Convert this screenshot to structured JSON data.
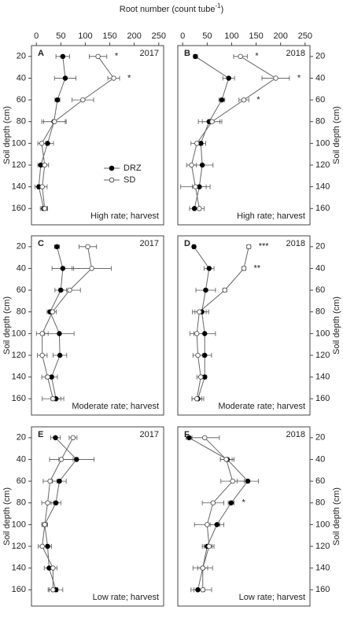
{
  "chart_data": [
    {
      "type": "line",
      "panel": "A",
      "year": "2017",
      "annotation": "High rate; harvest",
      "xlabel": "Root number (count tube",
      "xlabel_sup": "-1",
      "xlabel_end": ")",
      "ylabel": "Soil depth (cm)",
      "yaxis_side": "left",
      "xlim": [
        -10,
        260
      ],
      "xticks": [
        0,
        50,
        100,
        150,
        200,
        250
      ],
      "ylim": [
        10,
        175
      ],
      "y_inverted": true,
      "yticks": [
        20,
        40,
        60,
        80,
        100,
        120,
        140,
        160
      ],
      "y": [
        20,
        40,
        60,
        80,
        100,
        120,
        140,
        160
      ],
      "legend": "upper right",
      "series": [
        {
          "name": "DRZ",
          "color": "#000000",
          "fill": "#000000",
          "values": [
            54,
            59,
            43,
            36,
            23,
            9,
            5,
            15
          ],
          "errors": [
            14,
            22,
            5,
            25,
            12,
            6,
            8,
            7
          ]
        },
        {
          "name": "SD",
          "color": "#555555",
          "fill": "#ffffff",
          "values": [
            126,
            158,
            95,
            37,
            11,
            17,
            12,
            17
          ],
          "errors": [
            18,
            12,
            22,
            22,
            8,
            8,
            10,
            6
          ]
        }
      ],
      "annotations": [
        {
          "y": 20,
          "text": "*"
        },
        {
          "y": 40,
          "text": "*"
        }
      ]
    },
    {
      "type": "line",
      "panel": "B",
      "year": "2018",
      "annotation": "High rate; harvest",
      "ylabel": "Soil depth (cm)",
      "yaxis_side": "right",
      "xlim": [
        -10,
        260
      ],
      "xticks": [
        0,
        50,
        100,
        150,
        200,
        250
      ],
      "ylim": [
        10,
        175
      ],
      "y_inverted": true,
      "yticks": [
        20,
        40,
        60,
        80,
        100,
        120,
        140,
        160
      ],
      "y": [
        20,
        40,
        60,
        80,
        100,
        120,
        140,
        160
      ],
      "series": [
        {
          "name": "DRZ",
          "color": "#000000",
          "fill": "#000000",
          "values": [
            26,
            94,
            80,
            54,
            37,
            40,
            34,
            24
          ],
          "errors": [
            4,
            12,
            6,
            22,
            10,
            22,
            14,
            10
          ]
        },
        {
          "name": "SD",
          "color": "#555555",
          "fill": "#ffffff",
          "values": [
            118,
            190,
            125,
            60,
            29,
            18,
            26,
            34
          ],
          "errors": [
            14,
            28,
            10,
            20,
            12,
            10,
            30,
            10
          ]
        }
      ],
      "annotations": [
        {
          "y": 20,
          "text": "*"
        },
        {
          "y": 40,
          "text": "*"
        },
        {
          "y": 60,
          "text": "*"
        }
      ]
    },
    {
      "type": "line",
      "panel": "C",
      "year": "2017",
      "annotation": "Moderate rate; harvest",
      "ylabel": "Soil depth (cm)",
      "yaxis_side": "left",
      "xlim": [
        -10,
        260
      ],
      "ylim": [
        10,
        175
      ],
      "y_inverted": true,
      "yticks": [
        20,
        40,
        60,
        80,
        100,
        120,
        140,
        160
      ],
      "y": [
        20,
        40,
        60,
        80,
        100,
        120,
        140,
        160
      ],
      "series": [
        {
          "name": "DRZ",
          "color": "#000000",
          "fill": "#000000",
          "values": [
            42,
            54,
            50,
            28,
            47,
            48,
            31,
            40
          ],
          "errors": [
            5,
            22,
            12,
            6,
            30,
            14,
            12,
            10
          ]
        },
        {
          "name": "SD",
          "color": "#555555",
          "fill": "#ffffff",
          "values": [
            105,
            113,
            68,
            33,
            12,
            12,
            23,
            34
          ],
          "errors": [
            18,
            40,
            22,
            8,
            12,
            10,
            12,
            22
          ]
        }
      ],
      "annotations": []
    },
    {
      "type": "line",
      "panel": "D",
      "year": "2018",
      "annotation": "Moderate rate; harvest",
      "ylabel": "Soil depth (cm)",
      "yaxis_side": "right",
      "xlim": [
        -10,
        260
      ],
      "ylim": [
        10,
        175
      ],
      "y_inverted": true,
      "yticks": [
        20,
        40,
        60,
        80,
        100,
        120,
        140,
        160
      ],
      "y": [
        20,
        40,
        60,
        80,
        100,
        120,
        140,
        160
      ],
      "series": [
        {
          "name": "DRZ",
          "color": "#000000",
          "fill": "#000000",
          "values": [
            23,
            54,
            47,
            39,
            45,
            45,
            45,
            31
          ],
          "errors": [
            3,
            10,
            20,
            14,
            22,
            14,
            4,
            12
          ]
        },
        {
          "name": "SD",
          "color": "#555555",
          "fill": "#ffffff",
          "values": [
            135,
            125,
            86,
            34,
            29,
            31,
            37,
            29
          ],
          "errors": [
            4,
            4,
            4,
            14,
            14,
            10,
            8,
            10
          ]
        }
      ],
      "annotations": [
        {
          "y": 20,
          "text": "***"
        },
        {
          "y": 40,
          "text": "**"
        }
      ]
    },
    {
      "type": "line",
      "panel": "E",
      "year": "2017",
      "annotation": "Low rate; harvest",
      "ylabel": "Soil depth (cm)",
      "yaxis_side": "left",
      "xlim": [
        -10,
        260
      ],
      "ylim": [
        10,
        175
      ],
      "y_inverted": true,
      "yticks": [
        20,
        40,
        60,
        80,
        100,
        120,
        140,
        160
      ],
      "y": [
        20,
        40,
        60,
        80,
        100,
        120,
        140,
        160
      ],
      "series": [
        {
          "name": "DRZ",
          "color": "#000000",
          "fill": "#000000",
          "values": [
            39,
            82,
            47,
            40,
            17,
            23,
            26,
            40
          ],
          "errors": [
            10,
            36,
            14,
            10,
            4,
            8,
            10,
            14
          ]
        },
        {
          "name": "SD",
          "color": "#555555",
          "fill": "#ffffff",
          "values": [
            75,
            51,
            28,
            23,
            17,
            12,
            34,
            34
          ],
          "errors": [
            8,
            24,
            14,
            12,
            6,
            8,
            8,
            10
          ]
        }
      ],
      "annotations": []
    },
    {
      "type": "line",
      "panel": "F",
      "year": "2018",
      "annotation": "Low rate; harvest",
      "ylabel": "Soil depth (cm)",
      "yaxis_side": "right",
      "xlim": [
        -10,
        260
      ],
      "ylim": [
        10,
        175
      ],
      "y_inverted": true,
      "yticks": [
        20,
        40,
        60,
        80,
        100,
        120,
        140,
        160
      ],
      "y": [
        20,
        40,
        60,
        80,
        100,
        120,
        140,
        160
      ],
      "series": [
        {
          "name": "DRZ",
          "color": "#000000",
          "fill": "#000000",
          "values": [
            13,
            91,
            133,
            99,
            70,
            50,
            41,
            31
          ],
          "errors": [
            6,
            14,
            22,
            6,
            14,
            10,
            10,
            14
          ]
        },
        {
          "name": "SD",
          "color": "#555555",
          "fill": "#ffffff",
          "values": [
            45,
            89,
            102,
            62,
            50,
            54,
            41,
            41
          ],
          "errors": [
            30,
            12,
            24,
            22,
            26,
            10,
            20,
            18
          ]
        }
      ],
      "annotations": [
        {
          "y": 80,
          "text": "*"
        }
      ]
    }
  ]
}
